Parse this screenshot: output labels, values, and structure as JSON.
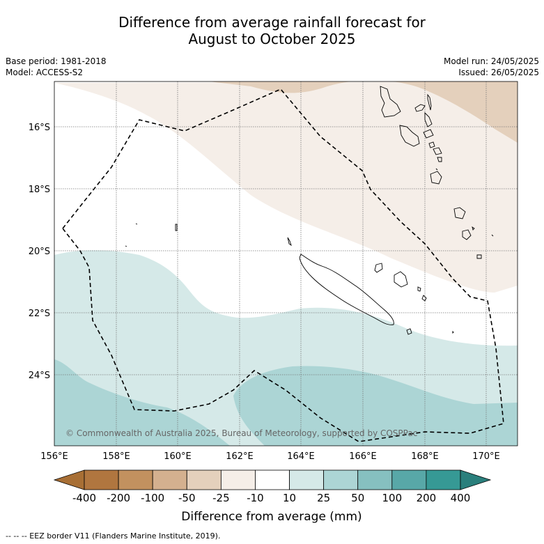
{
  "title": {
    "line1": "Difference from average rainfall forecast for",
    "line2": "August to October 2025"
  },
  "meta": {
    "base_period": "Base period: 1981-2018",
    "model": "Model: ACCESS-S2",
    "model_run": "Model run: 24/05/2025",
    "issued": "Issued: 26/05/2025"
  },
  "map": {
    "lat_labels": [
      "16°S",
      "18°S",
      "20°S",
      "22°S",
      "24°S"
    ],
    "lon_labels": [
      "156°E",
      "158°E",
      "160°E",
      "162°E",
      "164°E",
      "166°E",
      "168°E",
      "170°E"
    ],
    "copyright": "© Commonwealth of Australia 2025, Bureau of Meteorology, supported by COSPPac",
    "colors": {
      "dry_light": "#f5eee8",
      "dry_mid": "#e4d0bc",
      "wet_light": "#d5e9e8",
      "wet_mid": "#acd5d5"
    }
  },
  "colorbar": {
    "title": "Difference from average (mm)",
    "ticks": [
      "-400",
      "-200",
      "-100",
      "-50",
      "-25",
      "-10",
      "10",
      "25",
      "50",
      "100",
      "200",
      "400"
    ],
    "colors": [
      "#a86f35",
      "#b0763f",
      "#c2915f",
      "#d4b08f",
      "#e4d0bc",
      "#f5eee8",
      "#ffffff",
      "#d5e9e8",
      "#acd5d5",
      "#86c0c0",
      "#58a8a8",
      "#369995",
      "#2a7f7c"
    ]
  },
  "footer": {
    "legend_line": "--  --  -- EEZ border V11 (Flanders Marine Institute, 2019)."
  }
}
